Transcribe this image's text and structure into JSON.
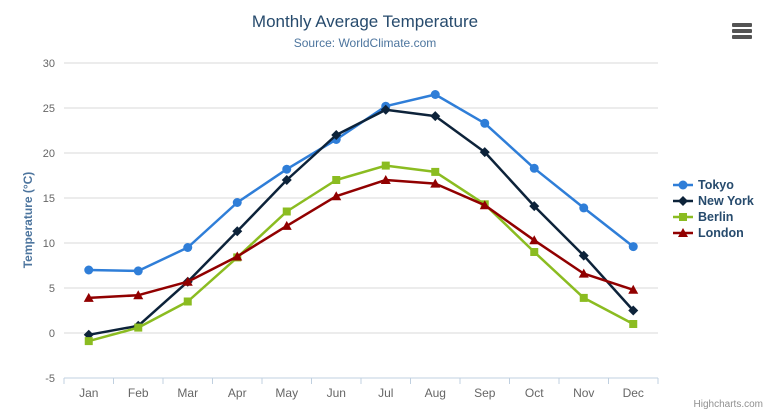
{
  "chart_data": {
    "type": "line",
    "title": "Monthly Average Temperature",
    "subtitle": "Source: WorldClimate.com",
    "credit": "Highcharts.com",
    "xlabel": "",
    "ylabel": "Temperature (°C)",
    "ylim": [
      -5,
      30
    ],
    "ytick_interval": 5,
    "grid": true,
    "legend_position": "right",
    "categories": [
      "Jan",
      "Feb",
      "Mar",
      "Apr",
      "May",
      "Jun",
      "Jul",
      "Aug",
      "Sep",
      "Oct",
      "Nov",
      "Dec"
    ],
    "series": [
      {
        "name": "Tokyo",
        "marker": "circle",
        "color": "#2f7ed8",
        "values": [
          7.0,
          6.9,
          9.5,
          14.5,
          18.2,
          21.5,
          25.2,
          26.5,
          23.3,
          18.3,
          13.9,
          9.6
        ]
      },
      {
        "name": "New York",
        "marker": "diamond",
        "color": "#0d233a",
        "values": [
          -0.2,
          0.8,
          5.7,
          11.3,
          17.0,
          22.0,
          24.8,
          24.1,
          20.1,
          14.1,
          8.6,
          2.5
        ]
      },
      {
        "name": "Berlin",
        "marker": "square",
        "color": "#8bbc21",
        "values": [
          -0.9,
          0.6,
          3.5,
          8.4,
          13.5,
          17.0,
          18.6,
          17.9,
          14.3,
          9.0,
          3.9,
          1.0
        ]
      },
      {
        "name": "London",
        "marker": "triangle",
        "color": "#910000",
        "values": [
          3.9,
          4.2,
          5.7,
          8.5,
          11.9,
          15.2,
          17.0,
          16.6,
          14.2,
          10.3,
          6.6,
          4.8
        ]
      }
    ]
  },
  "colors": {
    "title": "#274b6d",
    "subtitle": "#4d759e",
    "axis_title": "#4d759e",
    "tick_label": "#666666",
    "gridline": "#d8d8d8",
    "axis_line": "#c0d0e0",
    "legend_text": "#274b6d",
    "credit": "#909090"
  }
}
